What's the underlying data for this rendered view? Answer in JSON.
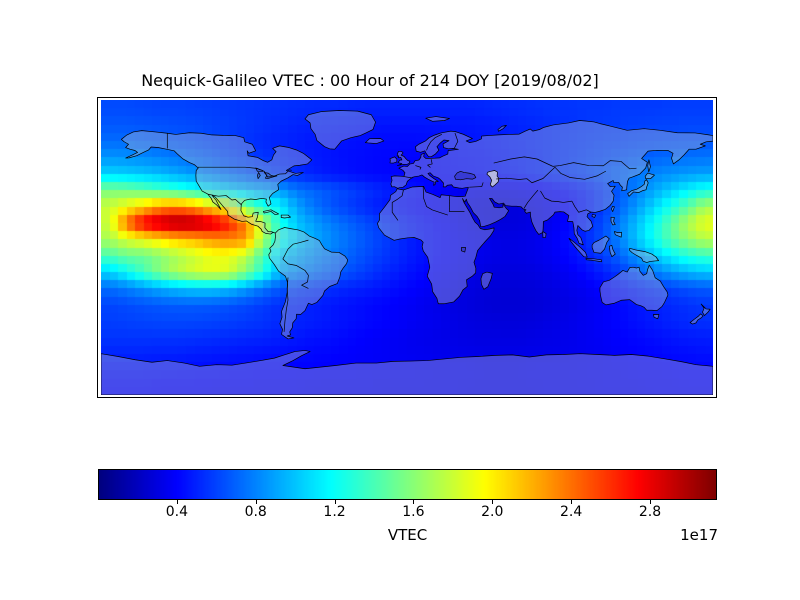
{
  "figure": {
    "title": "Nequick-Galileo VTEC : 00 Hour of 214 DOY [2019/08/02]",
    "background": "#ffffff"
  },
  "colorbar": {
    "label": "VTEC",
    "offset_text": "1e17",
    "tick_labels": [
      "0.4",
      "0.8",
      "1.2",
      "1.6",
      "2.0",
      "2.4",
      "2.8"
    ],
    "tick_values": [
      0.4,
      0.8,
      1.2,
      1.6,
      2.0,
      2.4,
      2.8
    ],
    "vmin": 0.0,
    "vmax": 3.14,
    "colormap": "jet",
    "orientation": "horizontal"
  },
  "chart_data": {
    "type": "heatmap",
    "title": "Nequick-Galileo VTEC : 00 Hour of 214 DOY [2019/08/02]",
    "quantity": "VTEC",
    "units_scale": "1e17",
    "colormap": "jet",
    "vmin": 0.0,
    "vmax": 3.14,
    "projection": "equirectangular world map with coastlines",
    "lon_range": [
      -180,
      180
    ],
    "lat_range": [
      -90,
      90
    ],
    "grid": {
      "lon_start": -175,
      "lon_step": 10,
      "lat_start": 85,
      "lat_step": -10,
      "cols": 36,
      "rows": 18
    },
    "values": [
      [
        0.62,
        0.62,
        0.61,
        0.6,
        0.6,
        0.59,
        0.58,
        0.57,
        0.56,
        0.55,
        0.54,
        0.53,
        0.52,
        0.52,
        0.51,
        0.5,
        0.5,
        0.5,
        0.5,
        0.5,
        0.5,
        0.5,
        0.51,
        0.52,
        0.53,
        0.54,
        0.55,
        0.55,
        0.56,
        0.56,
        0.57,
        0.57,
        0.57,
        0.58,
        0.58,
        0.58
      ],
      [
        0.66,
        0.66,
        0.65,
        0.64,
        0.63,
        0.62,
        0.6,
        0.58,
        0.56,
        0.54,
        0.52,
        0.5,
        0.49,
        0.48,
        0.47,
        0.46,
        0.45,
        0.45,
        0.45,
        0.45,
        0.46,
        0.46,
        0.47,
        0.48,
        0.5,
        0.51,
        0.53,
        0.54,
        0.56,
        0.57,
        0.58,
        0.59,
        0.6,
        0.6,
        0.61,
        0.61
      ],
      [
        0.72,
        0.72,
        0.7,
        0.68,
        0.66,
        0.64,
        0.61,
        0.58,
        0.55,
        0.52,
        0.5,
        0.48,
        0.46,
        0.45,
        0.44,
        0.43,
        0.42,
        0.42,
        0.42,
        0.43,
        0.44,
        0.45,
        0.46,
        0.47,
        0.49,
        0.51,
        0.53,
        0.55,
        0.57,
        0.59,
        0.6,
        0.62,
        0.63,
        0.64,
        0.65,
        0.65
      ],
      [
        0.85,
        0.84,
        0.82,
        0.79,
        0.76,
        0.72,
        0.68,
        0.63,
        0.59,
        0.55,
        0.52,
        0.49,
        0.47,
        0.45,
        0.43,
        0.42,
        0.41,
        0.4,
        0.4,
        0.41,
        0.42,
        0.43,
        0.44,
        0.46,
        0.48,
        0.5,
        0.53,
        0.56,
        0.59,
        0.62,
        0.65,
        0.68,
        0.7,
        0.72,
        0.74,
        0.75
      ],
      [
        1.05,
        1.03,
        1.0,
        0.96,
        0.91,
        0.86,
        0.8,
        0.74,
        0.68,
        0.62,
        0.57,
        0.53,
        0.49,
        0.46,
        0.44,
        0.42,
        0.41,
        0.4,
        0.4,
        0.4,
        0.41,
        0.42,
        0.43,
        0.45,
        0.47,
        0.5,
        0.53,
        0.57,
        0.61,
        0.66,
        0.71,
        0.76,
        0.8,
        0.84,
        0.87,
        0.89
      ],
      [
        1.55,
        1.52,
        1.46,
        1.38,
        1.3,
        1.22,
        1.14,
        1.06,
        0.99,
        0.93,
        0.87,
        0.75,
        0.7,
        0.65,
        0.6,
        0.55,
        0.5,
        0.46,
        0.43,
        0.4,
        0.37,
        0.35,
        0.34,
        0.33,
        0.34,
        0.36,
        0.39,
        0.43,
        0.49,
        0.57,
        0.67,
        0.78,
        0.9,
        1.02,
        1.14,
        1.24
      ],
      [
        1.8,
        1.95,
        2.1,
        2.3,
        2.35,
        2.25,
        2.05,
        1.9,
        1.55,
        1.3,
        1.15,
        0.9,
        0.75,
        0.65,
        0.58,
        0.52,
        0.47,
        0.43,
        0.4,
        0.37,
        0.34,
        0.31,
        0.29,
        0.28,
        0.29,
        0.31,
        0.35,
        0.4,
        0.47,
        0.57,
        0.7,
        0.86,
        1.05,
        1.25,
        1.45,
        1.7
      ],
      [
        1.8,
        2.45,
        2.85,
        3.0,
        3.08,
        3.05,
        2.92,
        2.7,
        2.35,
        1.75,
        1.25,
        1.0,
        0.88,
        0.78,
        0.7,
        0.63,
        0.56,
        0.5,
        0.45,
        0.41,
        0.37,
        0.33,
        0.3,
        0.28,
        0.29,
        0.31,
        0.35,
        0.41,
        0.5,
        0.62,
        0.78,
        0.98,
        1.2,
        1.45,
        1.72,
        1.9
      ],
      [
        1.7,
        1.85,
        1.95,
        2.05,
        2.15,
        2.2,
        2.3,
        2.35,
        2.3,
        1.7,
        1.3,
        1.05,
        0.92,
        0.82,
        0.74,
        0.66,
        0.59,
        0.52,
        0.46,
        0.42,
        0.38,
        0.35,
        0.33,
        0.31,
        0.31,
        0.33,
        0.37,
        0.43,
        0.52,
        0.64,
        0.8,
        1.0,
        1.22,
        1.45,
        1.62,
        1.75
      ],
      [
        1.4,
        1.5,
        1.5,
        1.6,
        1.7,
        1.8,
        1.9,
        1.9,
        1.75,
        1.4,
        1.05,
        0.95,
        0.85,
        0.77,
        0.7,
        0.63,
        0.57,
        0.51,
        0.46,
        0.42,
        0.38,
        0.35,
        0.33,
        0.31,
        0.31,
        0.33,
        0.36,
        0.41,
        0.48,
        0.58,
        0.7,
        0.85,
        1.0,
        1.15,
        1.28,
        1.35
      ],
      [
        1.05,
        1.2,
        1.4,
        1.6,
        1.75,
        1.85,
        1.9,
        1.85,
        1.6,
        1.3,
        0.95,
        0.85,
        0.77,
        0.7,
        0.64,
        0.58,
        0.52,
        0.47,
        0.43,
        0.39,
        0.36,
        0.33,
        0.3,
        0.29,
        0.29,
        0.3,
        0.33,
        0.37,
        0.42,
        0.49,
        0.57,
        0.67,
        0.77,
        0.87,
        0.95,
        1.0
      ],
      [
        0.72,
        0.78,
        0.85,
        0.92,
        0.98,
        1.02,
        1.02,
        0.98,
        0.88,
        0.76,
        0.66,
        0.6,
        0.56,
        0.53,
        0.5,
        0.48,
        0.45,
        0.42,
        0.39,
        0.36,
        0.33,
        0.3,
        0.28,
        0.27,
        0.27,
        0.28,
        0.3,
        0.33,
        0.36,
        0.4,
        0.45,
        0.5,
        0.55,
        0.6,
        0.64,
        0.67
      ],
      [
        0.6,
        0.62,
        0.64,
        0.66,
        0.67,
        0.67,
        0.66,
        0.64,
        0.61,
        0.57,
        0.53,
        0.5,
        0.48,
        0.46,
        0.44,
        0.42,
        0.4,
        0.38,
        0.36,
        0.33,
        0.31,
        0.29,
        0.27,
        0.26,
        0.26,
        0.27,
        0.29,
        0.31,
        0.34,
        0.37,
        0.41,
        0.45,
        0.48,
        0.51,
        0.54,
        0.56
      ],
      [
        0.58,
        0.59,
        0.6,
        0.61,
        0.61,
        0.61,
        0.6,
        0.59,
        0.57,
        0.55,
        0.52,
        0.5,
        0.48,
        0.46,
        0.44,
        0.42,
        0.4,
        0.38,
        0.36,
        0.34,
        0.32,
        0.3,
        0.29,
        0.28,
        0.28,
        0.29,
        0.31,
        0.33,
        0.35,
        0.38,
        0.41,
        0.44,
        0.47,
        0.5,
        0.52,
        0.54
      ],
      [
        0.55,
        0.55,
        0.55,
        0.55,
        0.55,
        0.54,
        0.53,
        0.52,
        0.51,
        0.5,
        0.48,
        0.46,
        0.44,
        0.43,
        0.41,
        0.39,
        0.37,
        0.36,
        0.34,
        0.33,
        0.32,
        0.31,
        0.3,
        0.3,
        0.3,
        0.31,
        0.32,
        0.33,
        0.35,
        0.37,
        0.39,
        0.41,
        0.43,
        0.45,
        0.47,
        0.48
      ],
      [
        0.5,
        0.5,
        0.5,
        0.49,
        0.49,
        0.48,
        0.47,
        0.46,
        0.45,
        0.44,
        0.43,
        0.42,
        0.41,
        0.4,
        0.39,
        0.38,
        0.37,
        0.36,
        0.35,
        0.34,
        0.33,
        0.33,
        0.32,
        0.32,
        0.32,
        0.33,
        0.33,
        0.34,
        0.35,
        0.36,
        0.38,
        0.39,
        0.4,
        0.42,
        0.43,
        0.44
      ],
      [
        0.44,
        0.44,
        0.44,
        0.43,
        0.43,
        0.42,
        0.42,
        0.41,
        0.41,
        0.4,
        0.4,
        0.39,
        0.39,
        0.38,
        0.38,
        0.37,
        0.37,
        0.36,
        0.36,
        0.35,
        0.35,
        0.35,
        0.34,
        0.34,
        0.34,
        0.35,
        0.35,
        0.35,
        0.36,
        0.36,
        0.37,
        0.38,
        0.38,
        0.39,
        0.4,
        0.4
      ],
      [
        0.4,
        0.4,
        0.4,
        0.39,
        0.39,
        0.39,
        0.38,
        0.38,
        0.38,
        0.37,
        0.37,
        0.37,
        0.36,
        0.36,
        0.36,
        0.36,
        0.35,
        0.35,
        0.35,
        0.35,
        0.35,
        0.34,
        0.34,
        0.34,
        0.34,
        0.34,
        0.35,
        0.35,
        0.35,
        0.36,
        0.36,
        0.36,
        0.37,
        0.37,
        0.38,
        0.38
      ]
    ]
  }
}
